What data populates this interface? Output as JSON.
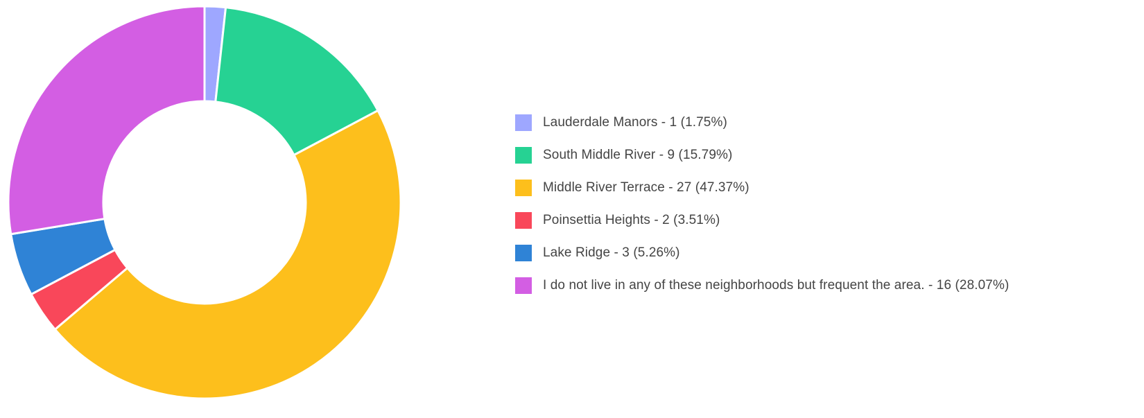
{
  "chart_data": {
    "type": "pie",
    "variant": "donut",
    "legend_position": "right",
    "slices": [
      {
        "name": "Lauderdale Manors",
        "value": 1,
        "percent": 1.75,
        "color": "#9ea7ff",
        "label": "Lauderdale Manors - 1 (1.75%)"
      },
      {
        "name": "South Middle River",
        "value": 9,
        "percent": 15.79,
        "color": "#26d293",
        "label": "South Middle River - 9 (15.79%)"
      },
      {
        "name": "Middle River Terrace",
        "value": 27,
        "percent": 47.37,
        "color": "#fdbf1c",
        "label": "Middle River Terrace - 27 (47.37%)"
      },
      {
        "name": "Poinsettia Heights",
        "value": 2,
        "percent": 3.51,
        "color": "#f9475a",
        "label": "Poinsettia Heights - 2 (3.51%)"
      },
      {
        "name": "Lake Ridge",
        "value": 3,
        "percent": 5.26,
        "color": "#2f83d6",
        "label": "Lake Ridge - 3 (5.26%)"
      },
      {
        "name": "I do not live in any of these neighborhoods but frequent the area.",
        "value": 16,
        "percent": 28.07,
        "color": "#d35ee3",
        "label": "I do not live in any of these neighborhoods but frequent the area.  - 16 (28.07%)"
      }
    ]
  }
}
